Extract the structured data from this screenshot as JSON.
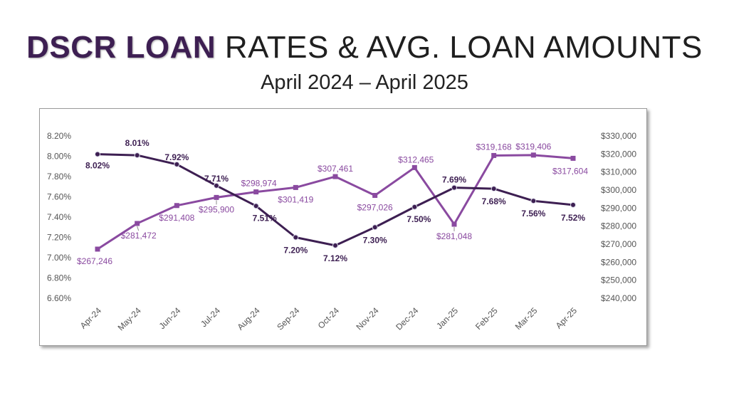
{
  "title": {
    "highlight": "DSCR LOAN",
    "rest": "RATES & AVG. LOAN AMOUNTS"
  },
  "subtitle": "April 2024 – April 2025",
  "colors": {
    "rate": "#3d1f52",
    "amount": "#8a4aa0",
    "axis_text": "#555555",
    "title_highlight": "#3d1f52"
  },
  "chart_data": {
    "type": "line",
    "categories": [
      "Apr-24",
      "May-24",
      "Jun-24",
      "Jul-24",
      "Aug-24",
      "Sep-24",
      "Oct-24",
      "Nov-24",
      "Dec-24",
      "Jan-25",
      "Feb-25",
      "Mar-25",
      "Apr-25"
    ],
    "left_axis": {
      "ylim": [
        6.6,
        8.2
      ],
      "ticks": [
        "6.60%",
        "6.80%",
        "7.00%",
        "7.20%",
        "7.40%",
        "7.60%",
        "7.80%",
        "8.00%",
        "8.20%"
      ]
    },
    "right_axis": {
      "ylim": [
        240000,
        330000
      ],
      "ticks": [
        "$240,000",
        "$250,000",
        "$260,000",
        "$270,000",
        "$280,000",
        "$290,000",
        "$300,000",
        "$310,000",
        "$320,000",
        "$330,000"
      ]
    },
    "series": [
      {
        "axis": "left",
        "marker": "circle",
        "values": [
          8.02,
          8.01,
          7.92,
          7.71,
          7.51,
          7.2,
          7.12,
          7.3,
          7.5,
          7.69,
          7.68,
          7.56,
          7.52
        ],
        "labels": [
          "8.02%",
          "8.01%",
          "7.92%",
          "7.71%",
          "7.51%",
          "7.20%",
          "7.12%",
          "7.30%",
          "7.50%",
          "7.69%",
          "7.68%",
          "7.56%",
          "7.52%"
        ]
      },
      {
        "axis": "right",
        "marker": "square",
        "values": [
          267246,
          281472,
          291408,
          295900,
          298974,
          301419,
          307461,
          297026,
          312465,
          281048,
          319168,
          319406,
          317604
        ],
        "labels": [
          "$267,246",
          "$281,472",
          "$291,408",
          "$295,900",
          "$298,974",
          "$301,419",
          "$307,461",
          "$297,026",
          "$312,465",
          "$281,048",
          "$319,168",
          "$319,406",
          "$317,604"
        ]
      }
    ]
  }
}
